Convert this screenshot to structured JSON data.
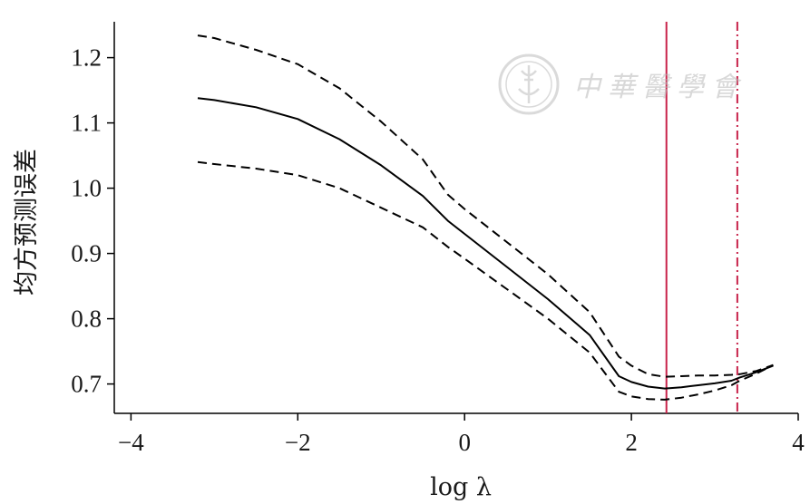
{
  "chart_data": {
    "type": "line",
    "xlabel": "log λ",
    "ylabel": "均方预测误差",
    "xlim": [
      -4.2,
      4.0
    ],
    "ylim": [
      0.655,
      1.255
    ],
    "x_ticks": [
      -4,
      -2,
      0,
      2,
      4
    ],
    "x_tick_labels": [
      "−4",
      "−2",
      "0",
      "2",
      "4"
    ],
    "y_ticks": [
      0.7,
      0.8,
      0.9,
      1.0,
      1.1,
      1.2
    ],
    "y_tick_labels": [
      "0.7",
      "0.8",
      "0.9",
      "1.0",
      "1.1",
      "1.2"
    ],
    "grid": false,
    "series": [
      {
        "style": "solid",
        "color": "#000000",
        "x": [
          -3.2,
          -3.0,
          -2.5,
          -2.0,
          -1.5,
          -1.0,
          -0.5,
          -0.2,
          0.0,
          0.5,
          1.0,
          1.5,
          1.85,
          2.0,
          2.2,
          2.4,
          2.6,
          2.8,
          3.0,
          3.2,
          3.3,
          3.5,
          3.7
        ],
        "y": [
          1.138,
          1.135,
          1.124,
          1.106,
          1.075,
          1.035,
          0.988,
          0.95,
          0.93,
          0.88,
          0.83,
          0.775,
          0.712,
          0.703,
          0.696,
          0.693,
          0.695,
          0.698,
          0.701,
          0.705,
          0.71,
          0.718,
          0.728
        ]
      },
      {
        "style": "dashed",
        "color": "#000000",
        "x": [
          -3.2,
          -3.0,
          -2.5,
          -2.0,
          -1.5,
          -1.0,
          -0.5,
          -0.2,
          0.0,
          0.5,
          1.0,
          1.5,
          1.85,
          2.0,
          2.2,
          2.4,
          2.6,
          2.8,
          3.0,
          3.2,
          3.3,
          3.5,
          3.7
        ],
        "y": [
          1.234,
          1.23,
          1.212,
          1.19,
          1.153,
          1.102,
          1.044,
          0.99,
          0.968,
          0.918,
          0.868,
          0.81,
          0.742,
          0.728,
          0.715,
          0.711,
          0.712,
          0.713,
          0.713,
          0.714,
          0.715,
          0.72,
          0.729
        ]
      },
      {
        "style": "dashed",
        "color": "#000000",
        "x": [
          -3.2,
          -3.0,
          -2.5,
          -2.0,
          -1.5,
          -1.0,
          -0.5,
          -0.2,
          0.0,
          0.5,
          1.0,
          1.5,
          1.85,
          2.0,
          2.2,
          2.4,
          2.6,
          2.8,
          3.0,
          3.2,
          3.3,
          3.5,
          3.7
        ],
        "y": [
          1.04,
          1.037,
          1.03,
          1.02,
          1.0,
          0.97,
          0.94,
          0.91,
          0.892,
          0.846,
          0.8,
          0.748,
          0.688,
          0.681,
          0.677,
          0.676,
          0.679,
          0.684,
          0.69,
          0.698,
          0.705,
          0.716,
          0.729
        ]
      }
    ],
    "reference_lines": [
      {
        "orientation": "vertical",
        "x": 2.42,
        "style": "solid",
        "color": "#c8234a"
      },
      {
        "orientation": "vertical",
        "x": 3.27,
        "style": "dashed",
        "color": "#c8234a"
      }
    ]
  },
  "watermark": {
    "text": "中華醫學會",
    "icon": "seal-icon",
    "color": "#b9b9b9"
  }
}
